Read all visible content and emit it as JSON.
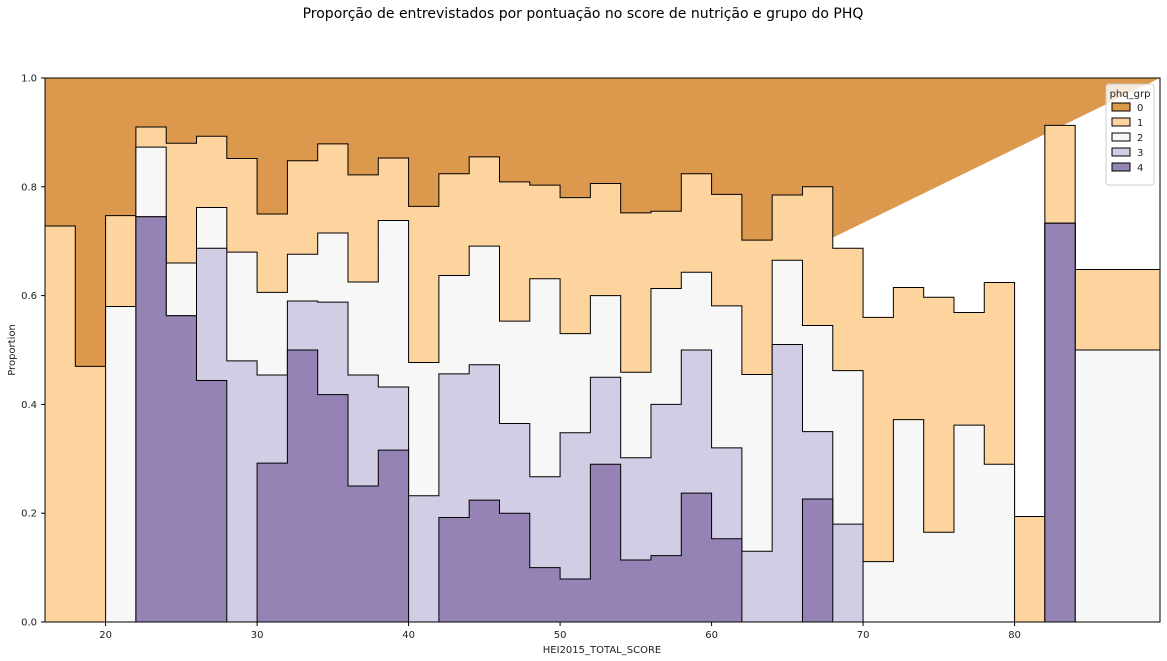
{
  "chart_data": {
    "type": "area",
    "title": "Proporção de entrevistados por pontuação no score de nutrição e grupo do PHQ",
    "xlabel": "HEI2015_TOTAL_SCORE",
    "ylabel": "Proportion",
    "xlim": [
      16.0,
      89.6
    ],
    "ylim": [
      0,
      1.0
    ],
    "xticks": [
      "20",
      "30",
      "40",
      "50",
      "60",
      "70",
      "80"
    ],
    "xtick_values": [
      20,
      30,
      40,
      50,
      60,
      70,
      80
    ],
    "yticks": [
      "0.0",
      "0.2",
      "0.4",
      "0.6",
      "0.8",
      "1.0"
    ],
    "ytick_values": [
      0,
      0.2,
      0.4,
      0.6,
      0.8,
      1.0
    ],
    "legend": {
      "title": "phq_grp",
      "position": "top-right",
      "entries": [
        "0",
        "1",
        "2",
        "3",
        "4"
      ]
    },
    "colors": {
      "0": "#dc984c",
      "1": "#fdd49e",
      "2": "#f7f7f7",
      "3": "#d0cde4",
      "4": "#9683b6"
    },
    "bin_edges": [
      16.0,
      18.0,
      20.0,
      22.0,
      24.0,
      26.0,
      28.0,
      30.0,
      32.0,
      34.0,
      36.0,
      38.0,
      40.0,
      42.0,
      44.0,
      46.0,
      48.0,
      50.0,
      52.0,
      54.0,
      56.0,
      58.0,
      60.0,
      62.0,
      64.0,
      66.0,
      68.0,
      70.0,
      72.0,
      74.0,
      76.0,
      78.0,
      80.0,
      82.0,
      84.0,
      89.6
    ],
    "cumulative": {
      "4": [
        0,
        0,
        0,
        0.745,
        0.563,
        0.444,
        0,
        0.292,
        0.5,
        0.418,
        0.25,
        0.316,
        0,
        0.192,
        0.224,
        0.2,
        0.1,
        0.079,
        0.29,
        0.114,
        0.122,
        0.237,
        0.153,
        0,
        0,
        0.226,
        0,
        0,
        0,
        0,
        0,
        0,
        0,
        0.733,
        0,
        0
      ],
      "3": [
        0,
        0,
        0,
        0.745,
        0.563,
        0.687,
        0.48,
        0.454,
        0.59,
        0.588,
        0.454,
        0.432,
        0.232,
        0.456,
        0.473,
        0.365,
        0.267,
        0.348,
        0.45,
        0.302,
        0.4,
        0.5,
        0.32,
        0.13,
        0.51,
        0.35,
        0.18,
        0,
        0,
        0,
        0,
        0,
        0,
        0.733,
        0,
        0
      ],
      "2": [
        0,
        0,
        0.58,
        0.873,
        0.66,
        0.762,
        0.68,
        0.606,
        0.676,
        0.715,
        0.625,
        0.738,
        0.477,
        0.637,
        0.691,
        0.553,
        0.631,
        0.53,
        0.6,
        0.459,
        0.613,
        0.643,
        0.581,
        0.455,
        0.665,
        0.545,
        0.462,
        0.111,
        0.372,
        0.165,
        0.362,
        0.29,
        0,
        0.733,
        0.5,
        0
      ],
      "1": [
        0.728,
        0.47,
        0.747,
        0.91,
        0.88,
        0.893,
        0.852,
        0.75,
        0.848,
        0.879,
        0.822,
        0.853,
        0.764,
        0.824,
        0.855,
        0.809,
        0.803,
        0.78,
        0.806,
        0.752,
        0.755,
        0.824,
        0.786,
        0.702,
        0.785,
        0.8,
        0.687,
        0.56,
        0.615,
        0.597,
        0.569,
        0.624,
        0.194,
        0.913,
        0.648,
        0
      ],
      "0": [
        1,
        1,
        1,
        1,
        1,
        1,
        1,
        1,
        1,
        1,
        1,
        1,
        1,
        1,
        1,
        1,
        1,
        1,
        1,
        1,
        1,
        1,
        1,
        1,
        1,
        1,
        1,
        1,
        1,
        1,
        1,
        1,
        1,
        1,
        1,
        1
      ]
    }
  }
}
